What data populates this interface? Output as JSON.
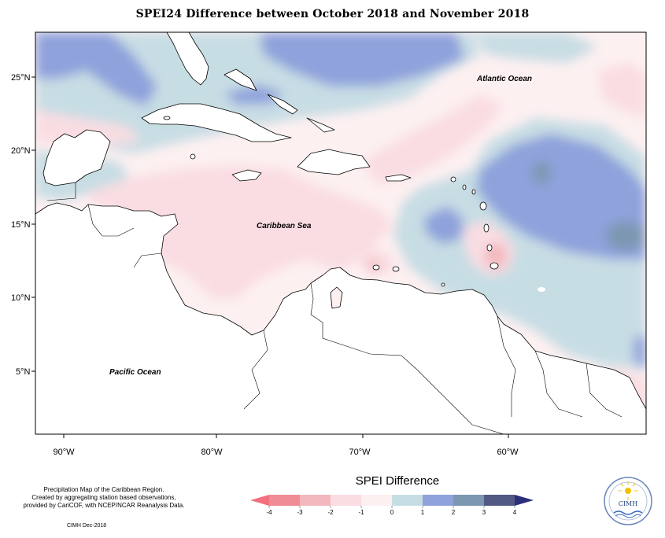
{
  "title": "SPEI24 Difference between October 2018 and November 2018",
  "map": {
    "latitude_labels": [
      "25°N",
      "20°N",
      "15°N",
      "10°N",
      "5°N"
    ],
    "longitude_labels": [
      "90°W",
      "80°W",
      "70°W",
      "60°W"
    ],
    "ocean_labels": {
      "atlantic": "Atlantic Ocean",
      "caribbean": "Caribbean Sea",
      "pacific": "Pacific Ocean"
    }
  },
  "legend": {
    "title": "SPEI Difference",
    "ticks": [
      "-4",
      "-3",
      "-2",
      "-1",
      "0",
      "1",
      "2",
      "3",
      "4"
    ],
    "colors": [
      "#f08c95",
      "#f2b8bd",
      "#f9dde2",
      "#fdf0f1",
      "#c7dde4",
      "#8fa2dc",
      "#7c97b0",
      "#525983"
    ],
    "left_arrow_color": "#f4707e",
    "right_arrow_color": "#2b2f7a"
  },
  "footer": {
    "note_lines": [
      "Precipitation Map of the Caribbean Region.",
      "Created by aggregating station based observations,",
      "provided by CariCOF, with NCEP/NCAR Reanalysis Data."
    ],
    "credit": "CIMH Dec-2018",
    "logo_text": "CIMH"
  }
}
